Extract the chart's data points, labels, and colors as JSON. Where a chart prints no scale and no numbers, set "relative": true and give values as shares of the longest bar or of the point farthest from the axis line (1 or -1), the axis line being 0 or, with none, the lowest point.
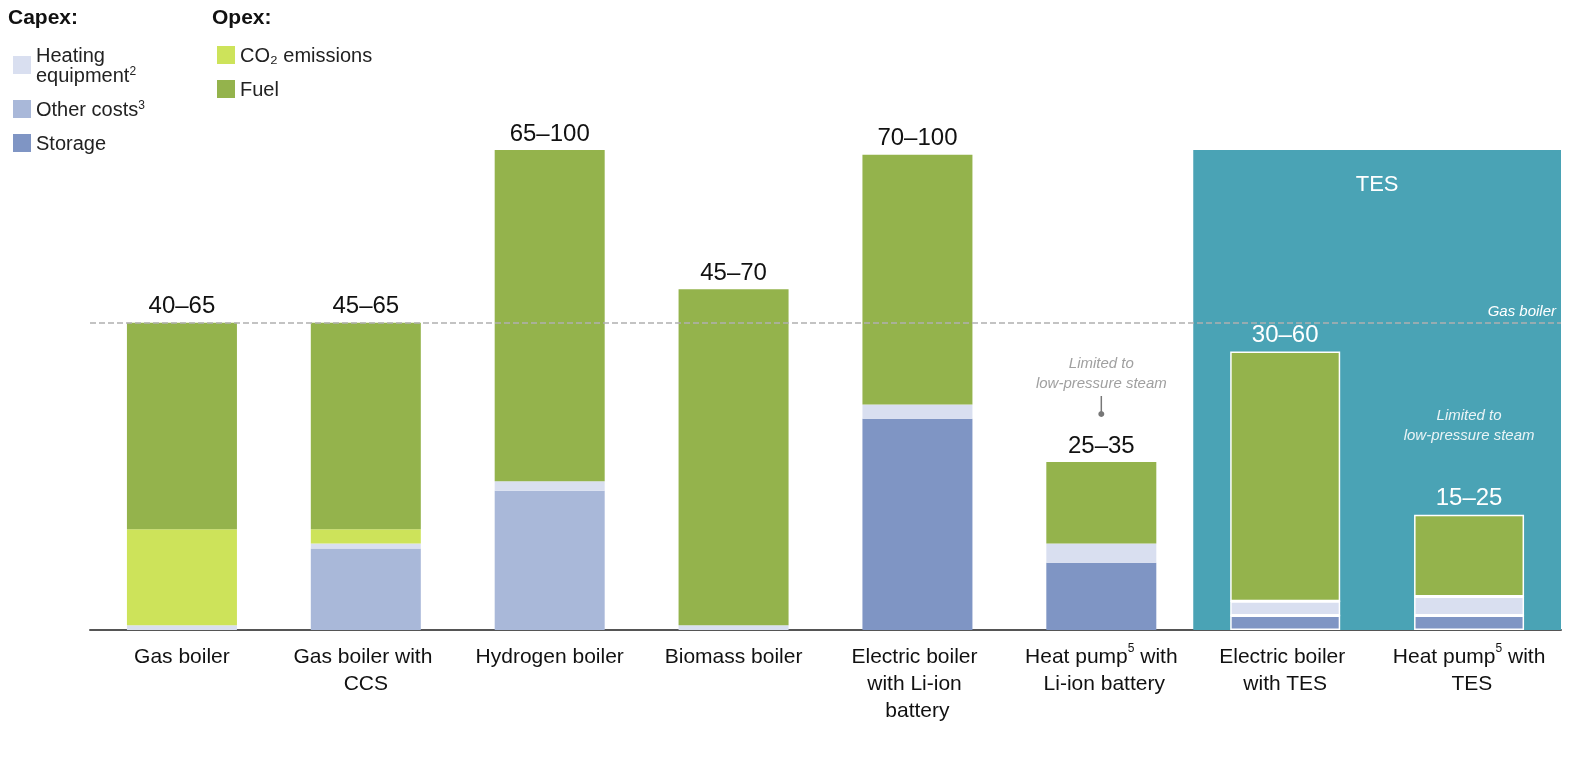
{
  "chart_data": {
    "type": "bar",
    "stacked": true,
    "relative": true,
    "categories": [
      "Gas boiler",
      "Gas boiler with CCS",
      "Hydrogen boiler",
      "Biomass boiler",
      "Electric boiler with Li-ion battery",
      "Heat pump$^{5}$ with Li-ion battery",
      "Electric boiler with TES",
      "Heat pump$^{5}$ with TES"
    ],
    "series": [
      {
        "name": "Storage",
        "color": "#7f95c4",
        "values": [
          0,
          0,
          0,
          0,
          0.44,
          0.14,
          0.03,
          0.03
        ]
      },
      {
        "name": "Other costs$^{3}$",
        "color": "#a9b8d9",
        "values": [
          0,
          0.17,
          0.29,
          0,
          0,
          0,
          0,
          0
        ]
      },
      {
        "name": "Heating equipment$^{2}$",
        "color": "#d9dff0",
        "values": [
          0.01,
          0.01,
          0.02,
          0.01,
          0.03,
          0.04,
          0.03,
          0.04
        ]
      },
      {
        "name": "CO₂ emissions",
        "color": "#cde35a",
        "values": [
          0.2,
          0.03,
          0,
          0,
          0,
          0,
          0,
          0
        ]
      },
      {
        "name": "Fuel",
        "color": "#94b34c",
        "values": [
          0.43,
          0.43,
          0.69,
          0.7,
          0.52,
          0.17,
          0.52,
          0.17
        ]
      }
    ],
    "totals": [
      "40–65",
      "45–65",
      "65–100",
      "45–70",
      "70–100",
      "25–35",
      "30–60",
      "15–25"
    ],
    "legend": "top left",
    "ref_lines": [
      {
        "axis": "y",
        "value": 0.64,
        "label": "Gas boiler",
        "color": "#b0b0b0",
        "line_style": "dashed"
      }
    ],
    "bands": [
      {
        "axis": "x",
        "from": "Electric boiler with TES",
        "to": "Heat pump$^{5}$ with TES",
        "label": "TES",
        "color": "#4aa3b5"
      }
    ],
    "annotations": [
      "Capex:",
      "Opex:",
      {
        "text": "Limited to low-pressure steam",
        "x": "Heat pump$^{5}$ with Li-ion battery",
        "y": 0.45
      },
      {
        "text": "Limited to low-pressure steam",
        "x": "Heat pump$^{5}$ with TES",
        "y": 0.34
      }
    ]
  }
}
